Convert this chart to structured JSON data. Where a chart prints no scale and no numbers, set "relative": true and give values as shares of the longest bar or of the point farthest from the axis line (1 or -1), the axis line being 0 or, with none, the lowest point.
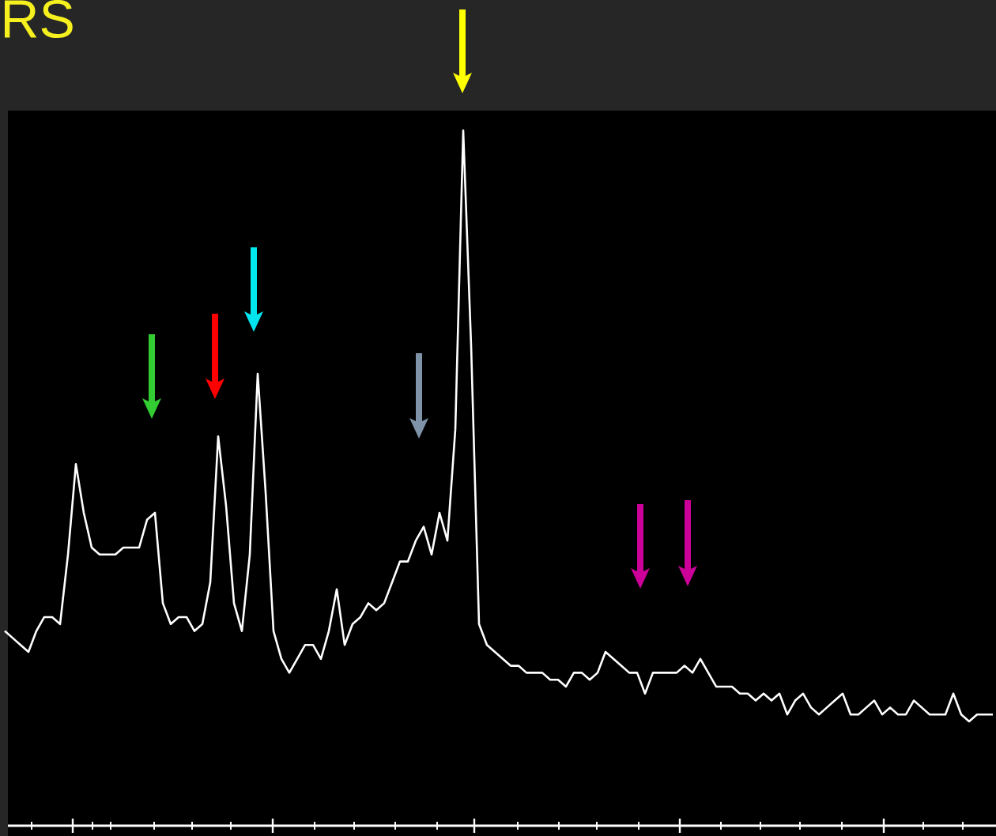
{
  "chart_data": {
    "type": "line",
    "title": "RS",
    "relative": true,
    "marker": "none",
    "categories": [
      null,
      null,
      null,
      null,
      null,
      null,
      null,
      null,
      null,
      null,
      null,
      null,
      null,
      null,
      null,
      null,
      null,
      null,
      null,
      null,
      null,
      null,
      null,
      null,
      null,
      null,
      null,
      null,
      null,
      null,
      null,
      null,
      null,
      null,
      null,
      null,
      null,
      null,
      null,
      null,
      null,
      null,
      null,
      null,
      null,
      null,
      null,
      null,
      null,
      null,
      null,
      null,
      null,
      null,
      null,
      null,
      null,
      null,
      null,
      null,
      null,
      null,
      null,
      null,
      null,
      null,
      null,
      null,
      null,
      null,
      null,
      null,
      null,
      null,
      null,
      null,
      null,
      null,
      null,
      null,
      null,
      null,
      null,
      null,
      null,
      null,
      null,
      null,
      null,
      null,
      null,
      null,
      null,
      null,
      null,
      null,
      null,
      null,
      null,
      null,
      null,
      null,
      null,
      null,
      null,
      null,
      null,
      null,
      null,
      null,
      null,
      null,
      null,
      null,
      null,
      null,
      null,
      null,
      null,
      null,
      null,
      null,
      null,
      null,
      null,
      null
    ],
    "series": [
      {
        "color": "#ffffff",
        "values": [
          0.28,
          0.27,
          0.26,
          0.25,
          0.28,
          0.3,
          0.3,
          0.29,
          0.39,
          0.52,
          0.45,
          0.4,
          0.39,
          0.39,
          0.39,
          0.4,
          0.4,
          0.4,
          0.44,
          0.45,
          0.32,
          0.29,
          0.3,
          0.3,
          0.28,
          0.29,
          0.35,
          0.56,
          0.46,
          0.32,
          0.28,
          0.39,
          0.65,
          0.48,
          0.28,
          0.24,
          0.22,
          0.24,
          0.26,
          0.26,
          0.24,
          0.28,
          0.34,
          0.26,
          0.29,
          0.3,
          0.32,
          0.31,
          0.32,
          0.35,
          0.38,
          0.38,
          0.41,
          0.43,
          0.39,
          0.45,
          0.41,
          0.57,
          1,
          0.69,
          0.29,
          0.26,
          0.25,
          0.24,
          0.23,
          0.23,
          0.22,
          0.22,
          0.22,
          0.21,
          0.21,
          0.2,
          0.22,
          0.22,
          0.21,
          0.22,
          0.25,
          0.24,
          0.23,
          0.22,
          0.22,
          0.19,
          0.22,
          0.22,
          0.22,
          0.22,
          0.23,
          0.22,
          0.24,
          0.22,
          0.2,
          0.2,
          0.2,
          0.19,
          0.19,
          0.18,
          0.19,
          0.18,
          0.19,
          0.16,
          0.18,
          0.19,
          0.17,
          0.16,
          0.17,
          0.18,
          0.19,
          0.16,
          0.16,
          0.17,
          0.18,
          0.16,
          0.17,
          0.16,
          0.16,
          0.18,
          0.17,
          0.16,
          0.16,
          0.16,
          0.19,
          0.16,
          0.15,
          0.16,
          0.16,
          0.16
        ]
      }
    ]
  }
}
